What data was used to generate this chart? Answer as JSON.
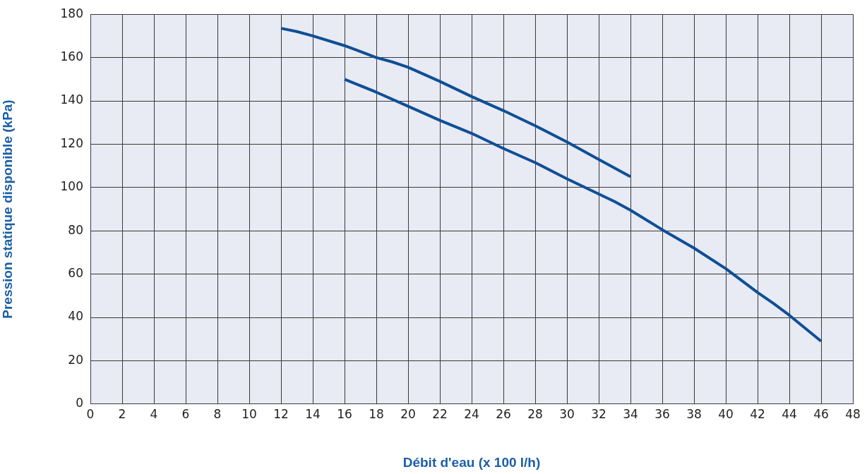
{
  "chart_data": {
    "type": "line",
    "xlabel": "Débit d'eau (x 100 l/h)",
    "ylabel": "Pression statique disponible (kPa)",
    "xlim": [
      0,
      48
    ],
    "xticks": [
      0,
      2,
      4,
      6,
      8,
      10,
      12,
      14,
      16,
      18,
      20,
      22,
      24,
      26,
      28,
      30,
      32,
      34,
      36,
      38,
      40,
      42,
      44,
      46,
      48
    ],
    "ylim": [
      0,
      180
    ],
    "yticks": [
      0,
      20,
      40,
      60,
      80,
      100,
      120,
      140,
      160,
      180
    ],
    "grid": true,
    "legend": false,
    "marker": "none",
    "line_style": "solid",
    "series": [
      {
        "color": "#0e4f96",
        "x": [
          12,
          13,
          14,
          16,
          18,
          19,
          20,
          22,
          24,
          26,
          28,
          30,
          32,
          34
        ],
        "values": [
          173.5,
          172,
          170,
          165.5,
          160,
          158,
          155.5,
          149,
          142,
          135.5,
          128.5,
          121,
          113,
          105
        ]
      },
      {
        "color": "#0e4f96",
        "x": [
          16,
          18,
          20,
          22,
          24,
          26,
          28,
          30,
          32,
          33,
          34,
          36,
          38,
          40,
          42,
          43,
          44,
          46
        ],
        "values": [
          150,
          144,
          137.5,
          131,
          125,
          118,
          111.5,
          104,
          97,
          93.5,
          89.5,
          80.5,
          72,
          62.5,
          51.5,
          46.5,
          41,
          29
        ]
      }
    ]
  }
}
